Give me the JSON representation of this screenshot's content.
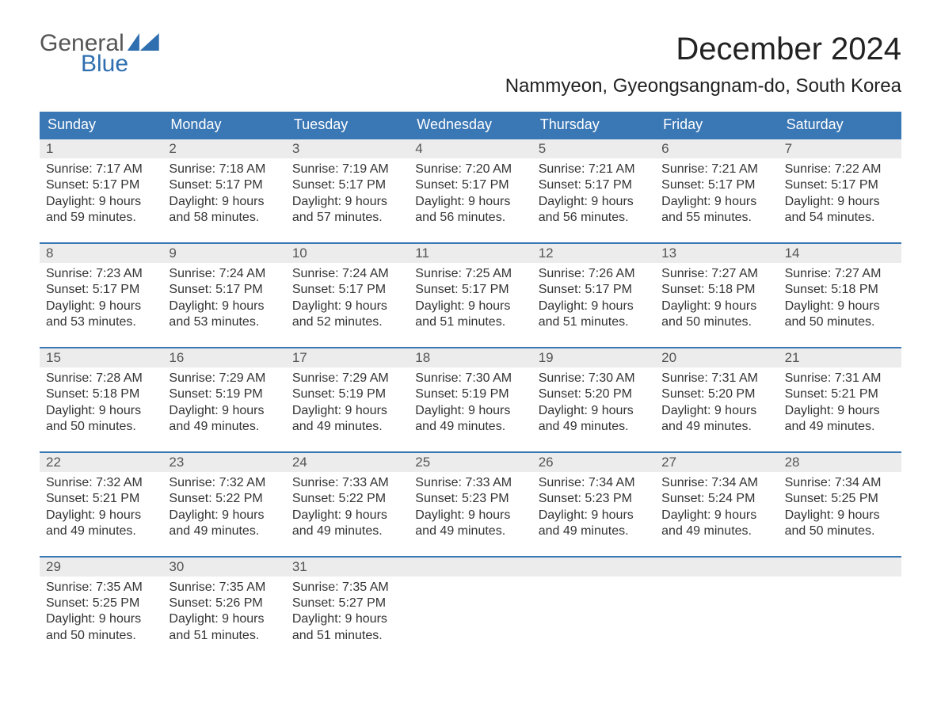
{
  "brand": {
    "word1": "General",
    "word2": "Blue"
  },
  "title": "December 2024",
  "location": "Nammyeon, Gyeongsangnam-do, South Korea",
  "colors": {
    "header_bg": "#3a77b5",
    "header_text": "#ffffff",
    "daynum_bg": "#ececec",
    "row_divider": "#3a77b5",
    "body_text": "#333333",
    "logo_accent": "#2f6fb0"
  },
  "typography": {
    "title_fontsize": 40,
    "location_fontsize": 24,
    "header_fontsize": 18,
    "cell_fontsize": 16
  },
  "layout": {
    "columns": 7,
    "rows": 5
  },
  "day_names": [
    "Sunday",
    "Monday",
    "Tuesday",
    "Wednesday",
    "Thursday",
    "Friday",
    "Saturday"
  ],
  "weeks": [
    [
      {
        "n": "1",
        "sunrise": "7:17 AM",
        "sunset": "5:17 PM",
        "dl1": "9 hours",
        "dl2": "and 59 minutes."
      },
      {
        "n": "2",
        "sunrise": "7:18 AM",
        "sunset": "5:17 PM",
        "dl1": "9 hours",
        "dl2": "and 58 minutes."
      },
      {
        "n": "3",
        "sunrise": "7:19 AM",
        "sunset": "5:17 PM",
        "dl1": "9 hours",
        "dl2": "and 57 minutes."
      },
      {
        "n": "4",
        "sunrise": "7:20 AM",
        "sunset": "5:17 PM",
        "dl1": "9 hours",
        "dl2": "and 56 minutes."
      },
      {
        "n": "5",
        "sunrise": "7:21 AM",
        "sunset": "5:17 PM",
        "dl1": "9 hours",
        "dl2": "and 56 minutes."
      },
      {
        "n": "6",
        "sunrise": "7:21 AM",
        "sunset": "5:17 PM",
        "dl1": "9 hours",
        "dl2": "and 55 minutes."
      },
      {
        "n": "7",
        "sunrise": "7:22 AM",
        "sunset": "5:17 PM",
        "dl1": "9 hours",
        "dl2": "and 54 minutes."
      }
    ],
    [
      {
        "n": "8",
        "sunrise": "7:23 AM",
        "sunset": "5:17 PM",
        "dl1": "9 hours",
        "dl2": "and 53 minutes."
      },
      {
        "n": "9",
        "sunrise": "7:24 AM",
        "sunset": "5:17 PM",
        "dl1": "9 hours",
        "dl2": "and 53 minutes."
      },
      {
        "n": "10",
        "sunrise": "7:24 AM",
        "sunset": "5:17 PM",
        "dl1": "9 hours",
        "dl2": "and 52 minutes."
      },
      {
        "n": "11",
        "sunrise": "7:25 AM",
        "sunset": "5:17 PM",
        "dl1": "9 hours",
        "dl2": "and 51 minutes."
      },
      {
        "n": "12",
        "sunrise": "7:26 AM",
        "sunset": "5:17 PM",
        "dl1": "9 hours",
        "dl2": "and 51 minutes."
      },
      {
        "n": "13",
        "sunrise": "7:27 AM",
        "sunset": "5:18 PM",
        "dl1": "9 hours",
        "dl2": "and 50 minutes."
      },
      {
        "n": "14",
        "sunrise": "7:27 AM",
        "sunset": "5:18 PM",
        "dl1": "9 hours",
        "dl2": "and 50 minutes."
      }
    ],
    [
      {
        "n": "15",
        "sunrise": "7:28 AM",
        "sunset": "5:18 PM",
        "dl1": "9 hours",
        "dl2": "and 50 minutes."
      },
      {
        "n": "16",
        "sunrise": "7:29 AM",
        "sunset": "5:19 PM",
        "dl1": "9 hours",
        "dl2": "and 49 minutes."
      },
      {
        "n": "17",
        "sunrise": "7:29 AM",
        "sunset": "5:19 PM",
        "dl1": "9 hours",
        "dl2": "and 49 minutes."
      },
      {
        "n": "18",
        "sunrise": "7:30 AM",
        "sunset": "5:19 PM",
        "dl1": "9 hours",
        "dl2": "and 49 minutes."
      },
      {
        "n": "19",
        "sunrise": "7:30 AM",
        "sunset": "5:20 PM",
        "dl1": "9 hours",
        "dl2": "and 49 minutes."
      },
      {
        "n": "20",
        "sunrise": "7:31 AM",
        "sunset": "5:20 PM",
        "dl1": "9 hours",
        "dl2": "and 49 minutes."
      },
      {
        "n": "21",
        "sunrise": "7:31 AM",
        "sunset": "5:21 PM",
        "dl1": "9 hours",
        "dl2": "and 49 minutes."
      }
    ],
    [
      {
        "n": "22",
        "sunrise": "7:32 AM",
        "sunset": "5:21 PM",
        "dl1": "9 hours",
        "dl2": "and 49 minutes."
      },
      {
        "n": "23",
        "sunrise": "7:32 AM",
        "sunset": "5:22 PM",
        "dl1": "9 hours",
        "dl2": "and 49 minutes."
      },
      {
        "n": "24",
        "sunrise": "7:33 AM",
        "sunset": "5:22 PM",
        "dl1": "9 hours",
        "dl2": "and 49 minutes."
      },
      {
        "n": "25",
        "sunrise": "7:33 AM",
        "sunset": "5:23 PM",
        "dl1": "9 hours",
        "dl2": "and 49 minutes."
      },
      {
        "n": "26",
        "sunrise": "7:34 AM",
        "sunset": "5:23 PM",
        "dl1": "9 hours",
        "dl2": "and 49 minutes."
      },
      {
        "n": "27",
        "sunrise": "7:34 AM",
        "sunset": "5:24 PM",
        "dl1": "9 hours",
        "dl2": "and 49 minutes."
      },
      {
        "n": "28",
        "sunrise": "7:34 AM",
        "sunset": "5:25 PM",
        "dl1": "9 hours",
        "dl2": "and 50 minutes."
      }
    ],
    [
      {
        "n": "29",
        "sunrise": "7:35 AM",
        "sunset": "5:25 PM",
        "dl1": "9 hours",
        "dl2": "and 50 minutes."
      },
      {
        "n": "30",
        "sunrise": "7:35 AM",
        "sunset": "5:26 PM",
        "dl1": "9 hours",
        "dl2": "and 51 minutes."
      },
      {
        "n": "31",
        "sunrise": "7:35 AM",
        "sunset": "5:27 PM",
        "dl1": "9 hours",
        "dl2": "and 51 minutes."
      },
      null,
      null,
      null,
      null
    ]
  ],
  "labels": {
    "sunrise_prefix": "Sunrise: ",
    "sunset_prefix": "Sunset: ",
    "daylight_prefix": "Daylight: "
  }
}
